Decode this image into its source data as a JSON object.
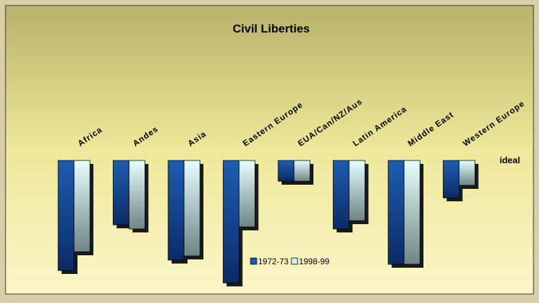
{
  "chart_data": {
    "type": "bar",
    "title": "Civil Liberties",
    "categories": [
      "Africa",
      "Andes",
      "Asia",
      "Eastern Europe",
      "EUA/Can/NZ/Aus",
      "Latin America",
      "Middle East",
      "Western Europe"
    ],
    "series": [
      {
        "name": "1972-73",
        "color": "#1d5cb0",
        "values": [
          5.3,
          3.1,
          4.8,
          5.9,
          1.0,
          3.3,
          5.0,
          1.8
        ]
      },
      {
        "name": "1998-99",
        "color": "#cfeeee",
        "values": [
          4.4,
          3.3,
          4.6,
          3.2,
          1.0,
          2.9,
          5.0,
          1.2
        ]
      }
    ],
    "baseline_label": "ideal",
    "ylim": [
      0,
      6
    ],
    "inverted": true
  }
}
